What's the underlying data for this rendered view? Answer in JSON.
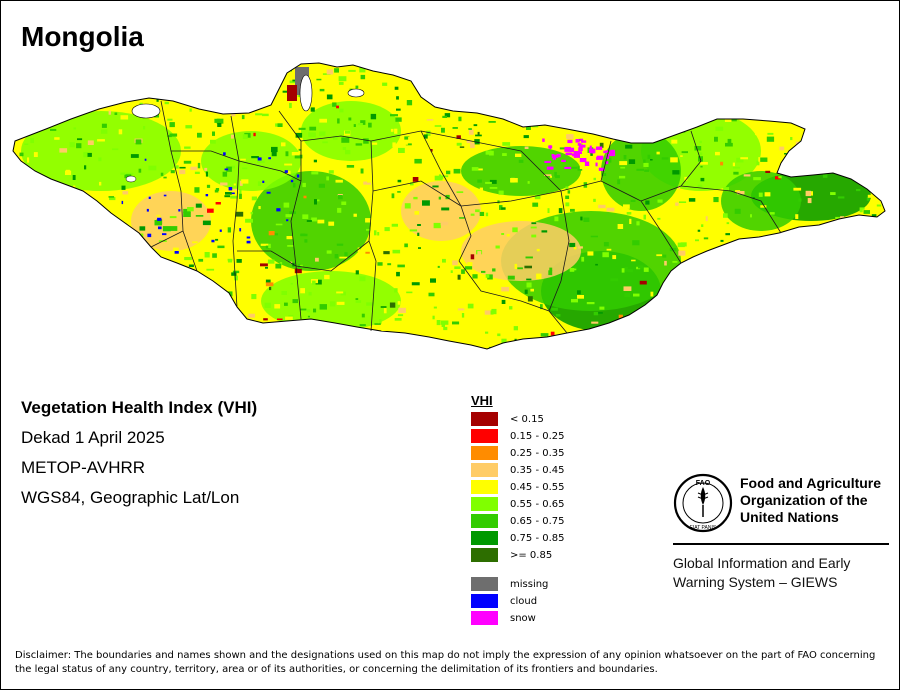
{
  "map": {
    "country": "Mongolia",
    "index_title": "Vegetation Health Index (VHI)",
    "dekad": "Dekad 1 April 2025",
    "sensor": "METOP-AVHRR",
    "projection": "WGS84, Geographic Lat/Lon"
  },
  "legend": {
    "title": "VHI",
    "classes": [
      {
        "label": "< 0.15",
        "color": "#a50000"
      },
      {
        "label": "0.15 - 0.25",
        "color": "#ff0000"
      },
      {
        "label": "0.25 - 0.35",
        "color": "#ff8c00"
      },
      {
        "label": "0.35 - 0.45",
        "color": "#ffcc66"
      },
      {
        "label": "0.45 - 0.55",
        "color": "#ffff00"
      },
      {
        "label": "0.55 - 0.65",
        "color": "#80ff00"
      },
      {
        "label": "0.65 - 0.75",
        "color": "#33cc00"
      },
      {
        "label": "0.75 - 0.85",
        "color": "#009900"
      },
      {
        "label": ">= 0.85",
        "color": "#2d6e00"
      }
    ],
    "special": [
      {
        "label": "missing",
        "color": "#6e6e6e"
      },
      {
        "label": "cloud",
        "color": "#0000ff"
      },
      {
        "label": "snow",
        "color": "#ff00ff"
      }
    ]
  },
  "organization": {
    "name_line1": "Food and Agriculture",
    "name_line2": "Organization of the",
    "name_line3": "United Nations",
    "logo_letters": "FAO",
    "logo_motto": "FIAT PANIS",
    "system_line1": "Global Information and Early",
    "system_line2": "Warning System – GIEWS"
  },
  "disclaimer": "Disclaimer: The boundaries and names shown and the designations used on this map do not imply the expression of any opinion whatsoever on the part of FAO concerning the legal status of any country, territory, area or of its authorities, or concerning the delimitation of its frontiers and boundaries."
}
